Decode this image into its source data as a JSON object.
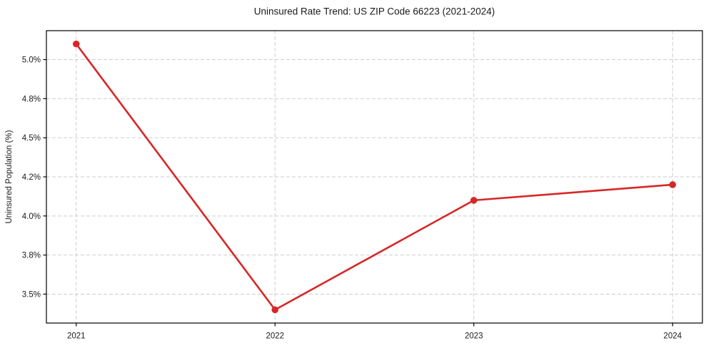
{
  "chart_data": {
    "type": "line",
    "title": "Uninsured Rate Trend: US ZIP Code 66223 (2021-2024)",
    "xlabel": "",
    "ylabel": "Uninsured Population (%)",
    "x": [
      2021,
      2022,
      2023,
      2024
    ],
    "x_tick_labels": [
      "2021",
      "2022",
      "2023",
      "2024"
    ],
    "values": [
      5.1,
      3.4,
      4.1,
      4.2
    ],
    "y_ticks": [
      {
        "value": 3.5,
        "label": "3.5%"
      },
      {
        "value": 3.75,
        "label": "3.8%"
      },
      {
        "value": 4.0,
        "label": "4.0%"
      },
      {
        "value": 4.25,
        "label": "4.2%"
      },
      {
        "value": 4.5,
        "label": "4.5%"
      },
      {
        "value": 4.75,
        "label": "4.8%"
      },
      {
        "value": 5.0,
        "label": "5.0%"
      }
    ],
    "xlim": [
      2020.85,
      2024.15
    ],
    "ylim": [
      3.315,
      5.185
    ],
    "grid": true,
    "grid_line_style": "dashed",
    "colors": {
      "line": "#d62728",
      "marker": "#d62728",
      "grid": "#cdcdcd",
      "spine": "#000000",
      "text": "#1a1a1a"
    }
  }
}
